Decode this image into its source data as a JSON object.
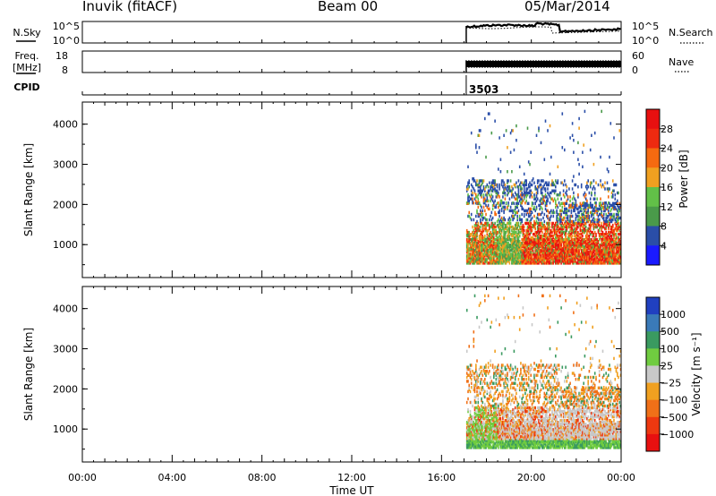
{
  "header": {
    "station": "Inuvik (fitACF)",
    "beam": "Beam 00",
    "date": "05/Mar/2014"
  },
  "noise_panel": {
    "left_label": "N.Sky",
    "left_ticks": [
      "10^5",
      "10^0"
    ],
    "right_ticks": [
      "10^5",
      "10^0"
    ],
    "right_label": "N.Search",
    "start_hour": 17.1
  },
  "freq_panel": {
    "left_label_1": "Freq.",
    "left_label_2": "[MHz]",
    "left_ticks": [
      "18",
      "8"
    ],
    "right_ticks": [
      "60",
      "0"
    ],
    "right_label": "Nave"
  },
  "cpid": {
    "label": "CPID",
    "value": "3503",
    "hour": 17.1
  },
  "chart_data": [
    {
      "type": "heatmap",
      "quantity": "Power",
      "ylabel": "Slant Range [km]",
      "xlabel": "",
      "yticks": [
        "1000",
        "2000",
        "3000",
        "4000"
      ],
      "ylim": [
        180,
        4550
      ],
      "xlim": [
        0,
        24
      ],
      "colorbar": {
        "label": "Power [dB]",
        "ticks": [
          "4",
          "8",
          "12",
          "16",
          "20",
          "24",
          "28"
        ],
        "tick_values": [
          4,
          8,
          12,
          16,
          20,
          24,
          28
        ],
        "range": [
          0,
          32
        ],
        "colors": [
          "#1a1aff",
          "#2a4ea8",
          "#4a9a4a",
          "#62c048",
          "#f0a020",
          "#f56a10",
          "#ee2a10",
          "#e81010"
        ]
      },
      "data_start_hour": 17.1,
      "data_end_hour": 24
    },
    {
      "type": "heatmap",
      "quantity": "Velocity",
      "ylabel": "Slant Range [km]",
      "xlabel": "Time UT",
      "yticks": [
        "1000",
        "2000",
        "3000",
        "4000"
      ],
      "ylim": [
        180,
        4550
      ],
      "xlim": [
        0,
        24
      ],
      "xticks": [
        "00:00",
        "04:00",
        "08:00",
        "12:00",
        "16:00",
        "20:00",
        "00:00"
      ],
      "colorbar": {
        "label": "Velocity [m s⁻¹]",
        "ticks": [
          "1000",
          "500",
          "100",
          "25",
          "−25",
          "−100",
          "−500",
          "−1000"
        ],
        "colors": [
          "#2040c0",
          "#3a7ab8",
          "#3a9a60",
          "#70cc40",
          "#c8c8c8",
          "#f0a020",
          "#f07018",
          "#ee3810",
          "#e81010"
        ]
      },
      "data_start_hour": 17.1,
      "data_end_hour": 24
    }
  ]
}
